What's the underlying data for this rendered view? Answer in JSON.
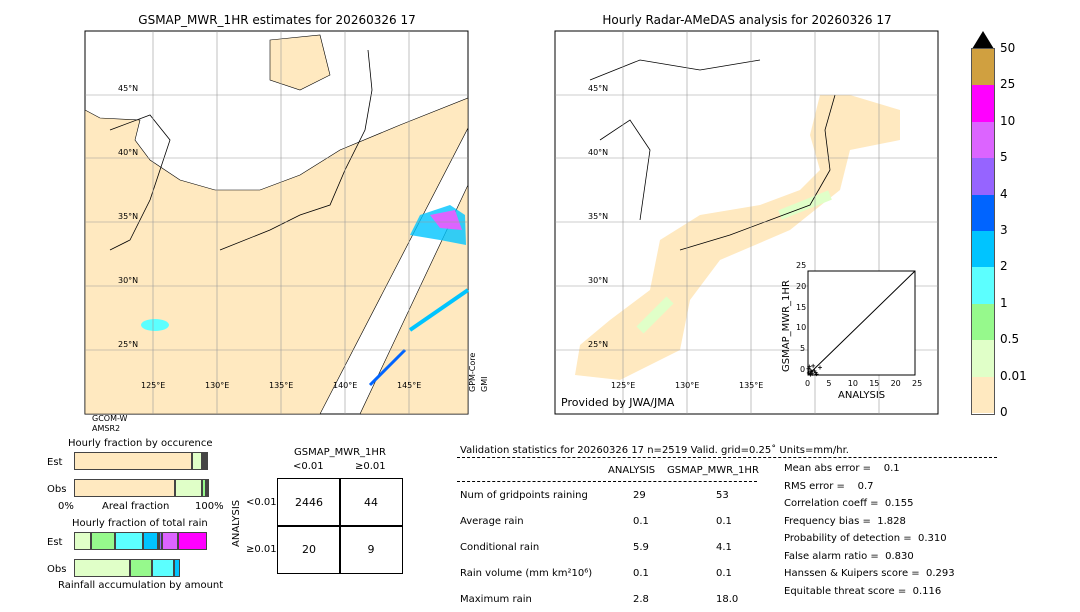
{
  "left_map": {
    "title": "GSMAP_MWR_1HR estimates for 20260326 17",
    "lat_labels": [
      "45°N",
      "40°N",
      "35°N",
      "30°N",
      "25°N"
    ],
    "lon_labels": [
      "125°E",
      "130°E",
      "135°E",
      "140°E",
      "145°E"
    ],
    "sensor_bottom_left": [
      "GCOM-W",
      "AMSR2"
    ],
    "sensor_right": [
      "GPM-Core",
      "GMI"
    ]
  },
  "right_map": {
    "title": "Hourly Radar-AMeDAS analysis for 20260326 17",
    "lat_labels": [
      "45°N",
      "40°N",
      "35°N",
      "30°N",
      "25°N"
    ],
    "lon_labels": [
      "125°E",
      "130°E",
      "135°E"
    ],
    "credit": "Provided by JWA/JMA"
  },
  "colorbar": {
    "labels": [
      "0",
      "0.01",
      "0.5",
      "1",
      "2",
      "3",
      "4",
      "5",
      "10",
      "25",
      "50"
    ],
    "colors": [
      "#ffe9c0",
      "#e0ffc8",
      "#96f98c",
      "#5cffff",
      "#00c4ff",
      "#0064ff",
      "#9664ff",
      "#dc64ff",
      "#ff00ff",
      "#d0a040"
    ],
    "extend_color": "#000000"
  },
  "fraction": {
    "occ_title": "Hourly fraction by occurence",
    "rain_title": "Hourly fraction of total rain",
    "est_label": "Est",
    "obs_label": "Obs",
    "axis_left": "0%",
    "axis_mid": "Areal fraction",
    "axis_right": "100%",
    "footer": "Rainfall accumulation by amount"
  },
  "contingency": {
    "title": "GSMAP_MWR_1HR",
    "col_labels": [
      "<0.01",
      "≥0.01"
    ],
    "row_axis": "ANALYSIS",
    "row_labels": [
      "<0.01",
      "≥0.01"
    ],
    "values": [
      [
        "2446",
        "44"
      ],
      [
        "20",
        "9"
      ]
    ]
  },
  "stats": {
    "header": "Validation statistics for 20260326 17  n=2519 Valid. grid=0.25˚ Units=mm/hr.",
    "col_analysis": "ANALYSIS",
    "col_gsmap": "GSMAP_MWR_1HR",
    "rows": [
      {
        "label": "Num of gridpoints raining",
        "a": "29",
        "g": "53"
      },
      {
        "label": "Average rain",
        "a": "0.1",
        "g": "0.1"
      },
      {
        "label": "Conditional rain",
        "a": "5.9",
        "g": "4.1"
      },
      {
        "label": "Rain volume (mm km²10⁶)",
        "a": "0.1",
        "g": "0.1"
      },
      {
        "label": "Maximum rain",
        "a": "2.8",
        "g": "18.0"
      }
    ],
    "scores": [
      "Mean abs error =    0.1",
      "RMS error =    0.7",
      "Correlation coeff =  0.155",
      "Frequency bias =  1.828",
      "Probability of detection =  0.310",
      "False alarm ratio =  0.830",
      "Hanssen & Kuipers score =  0.293",
      "Equitable threat score =  0.116"
    ]
  },
  "chart_data": [
    {
      "type": "scatter",
      "xlabel": "ANALYSIS",
      "ylabel": "GSMAP_MWR_1HR",
      "xlim": [
        0,
        25
      ],
      "ylim": [
        0,
        25
      ],
      "ticks": [
        "0",
        "5",
        "10",
        "15",
        "20",
        "25"
      ],
      "points": [
        [
          0.2,
          0.5
        ],
        [
          0.5,
          1.2
        ],
        [
          1,
          0.3
        ],
        [
          0.3,
          2
        ],
        [
          1.5,
          1
        ],
        [
          0.8,
          0.8
        ],
        [
          2,
          0.2
        ],
        [
          0.1,
          1.5
        ],
        [
          1.2,
          2.2
        ],
        [
          2.8,
          1.8
        ],
        [
          0.6,
          0.1
        ],
        [
          1.8,
          0.6
        ]
      ]
    },
    {
      "type": "bar",
      "title": "Hourly fraction by occurence",
      "stacked": true,
      "series": [
        {
          "name": "Est",
          "values": [
            89,
            7,
            2,
            1,
            1
          ]
        },
        {
          "name": "Obs",
          "values": [
            76,
            20,
            3,
            1,
            0
          ]
        }
      ]
    },
    {
      "type": "bar",
      "title": "Hourly fraction of total rain",
      "stacked": true,
      "series": [
        {
          "name": "Est",
          "values": [
            13,
            18,
            21,
            11,
            1,
            2,
            12,
            22
          ]
        },
        {
          "name": "Obs",
          "values": [
            42,
            17,
            16,
            5
          ]
        }
      ]
    }
  ]
}
